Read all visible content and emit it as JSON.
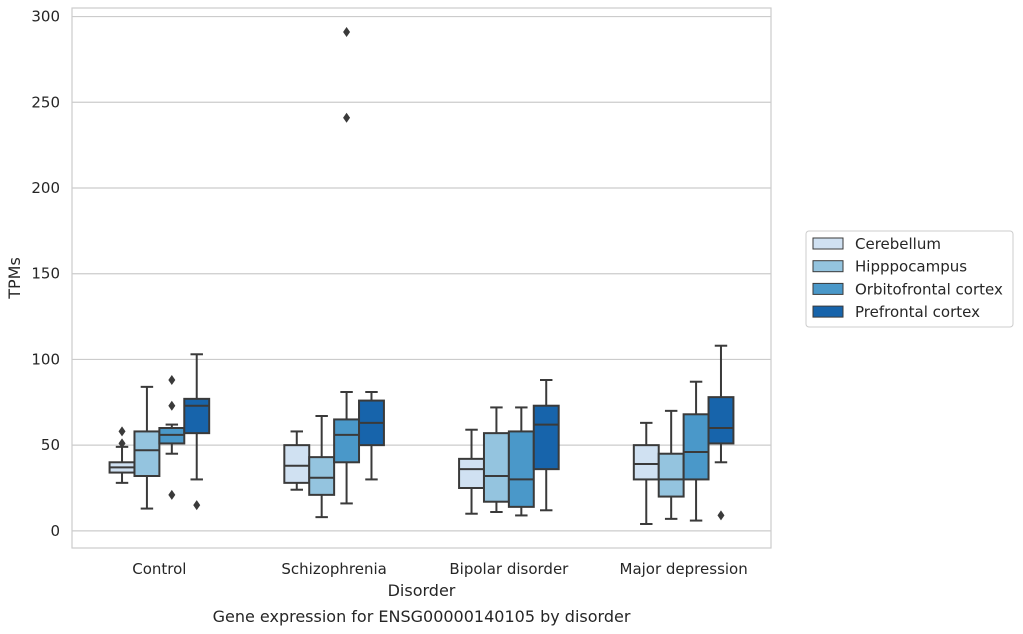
{
  "chart_data": {
    "type": "box",
    "xlabel": "Disorder",
    "ylabel": "TPMs",
    "caption": "Gene expression for ENSG00000140105 by disorder",
    "ylim": [
      -10,
      305
    ],
    "yticks": [
      0,
      50,
      100,
      150,
      200,
      250,
      300
    ],
    "grid": "horizontal",
    "legend_position": "right",
    "categories": [
      "Control",
      "Schizophrenia",
      "Bipolar disorder",
      "Major depression"
    ],
    "series": [
      {
        "name": "Cerebellum",
        "color": "#d0e1f2",
        "boxes": [
          {
            "whislo": 28,
            "q1": 34,
            "med": 37,
            "q3": 40,
            "whishi": 49,
            "fliers": [
              51,
              58
            ]
          },
          {
            "whislo": 24,
            "q1": 28,
            "med": 38,
            "q3": 50,
            "whishi": 58,
            "fliers": []
          },
          {
            "whislo": 10,
            "q1": 25,
            "med": 36,
            "q3": 42,
            "whishi": 59,
            "fliers": []
          },
          {
            "whislo": 4,
            "q1": 30,
            "med": 39,
            "q3": 50,
            "whishi": 63,
            "fliers": []
          }
        ]
      },
      {
        "name": "Hipppocampus",
        "color": "#94c4df",
        "boxes": [
          {
            "whislo": 13,
            "q1": 32,
            "med": 47,
            "q3": 58,
            "whishi": 84,
            "fliers": []
          },
          {
            "whislo": 8,
            "q1": 21,
            "med": 31,
            "q3": 43,
            "whishi": 67,
            "fliers": []
          },
          {
            "whislo": 11,
            "q1": 17,
            "med": 32,
            "q3": 57,
            "whishi": 72,
            "fliers": []
          },
          {
            "whislo": 7,
            "q1": 20,
            "med": 30,
            "q3": 45,
            "whishi": 70,
            "fliers": []
          }
        ]
      },
      {
        "name": "Orbitofrontal cortex",
        "color": "#4a98c9",
        "boxes": [
          {
            "whislo": 45,
            "q1": 51,
            "med": 56,
            "q3": 60,
            "whishi": 62,
            "fliers": [
              21,
              73,
              88
            ]
          },
          {
            "whislo": 16,
            "q1": 40,
            "med": 56,
            "q3": 65,
            "whishi": 81,
            "fliers": [
              291,
              241
            ]
          },
          {
            "whislo": 9,
            "q1": 14,
            "med": 30,
            "q3": 58,
            "whishi": 72,
            "fliers": []
          },
          {
            "whislo": 6,
            "q1": 30,
            "med": 46,
            "q3": 68,
            "whishi": 87,
            "fliers": []
          }
        ]
      },
      {
        "name": "Prefrontal cortex",
        "color": "#1764ab",
        "boxes": [
          {
            "whislo": 30,
            "q1": 57,
            "med": 73,
            "q3": 77,
            "whishi": 103,
            "fliers": [
              15
            ]
          },
          {
            "whislo": 30,
            "q1": 50,
            "med": 63,
            "q3": 76,
            "whishi": 81,
            "fliers": []
          },
          {
            "whislo": 12,
            "q1": 36,
            "med": 62,
            "q3": 73,
            "whishi": 88,
            "fliers": []
          },
          {
            "whislo": 40,
            "q1": 51,
            "med": 60,
            "q3": 78,
            "whishi": 108,
            "fliers": [
              9
            ]
          }
        ]
      }
    ]
  }
}
